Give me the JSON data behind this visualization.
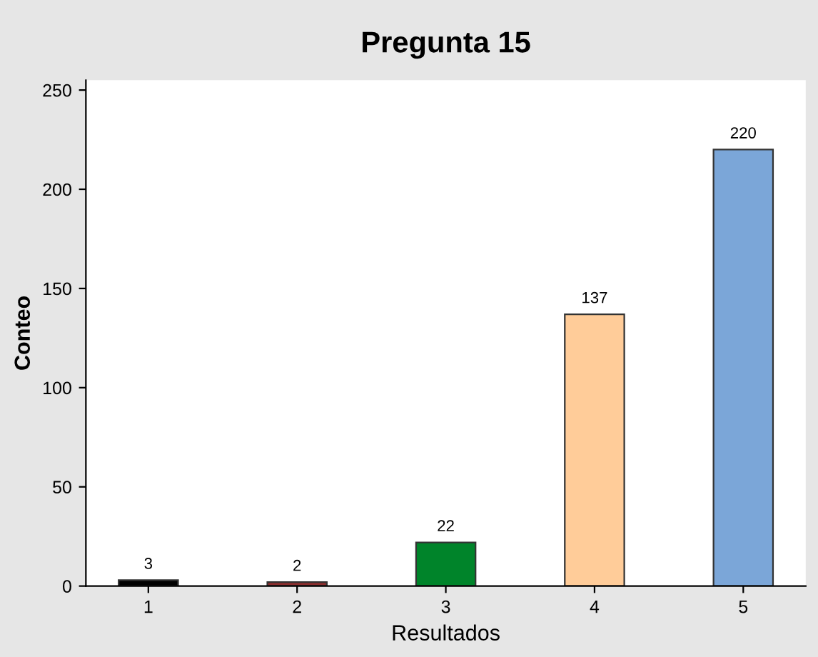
{
  "chart_data": {
    "type": "bar",
    "title": "Pregunta 15",
    "xlabel": "Resultados",
    "ylabel": "Conteo",
    "categories": [
      "1",
      "2",
      "3",
      "4",
      "5"
    ],
    "values": [
      3,
      2,
      22,
      137,
      220
    ],
    "colors": [
      "#000000",
      "#8b2e2e",
      "#00842a",
      "#ffcc99",
      "#7ba6d8"
    ],
    "ylim": [
      0,
      255
    ],
    "yticks": [
      0,
      50,
      100,
      150,
      200,
      250
    ],
    "grid": false,
    "data_labels": true
  }
}
